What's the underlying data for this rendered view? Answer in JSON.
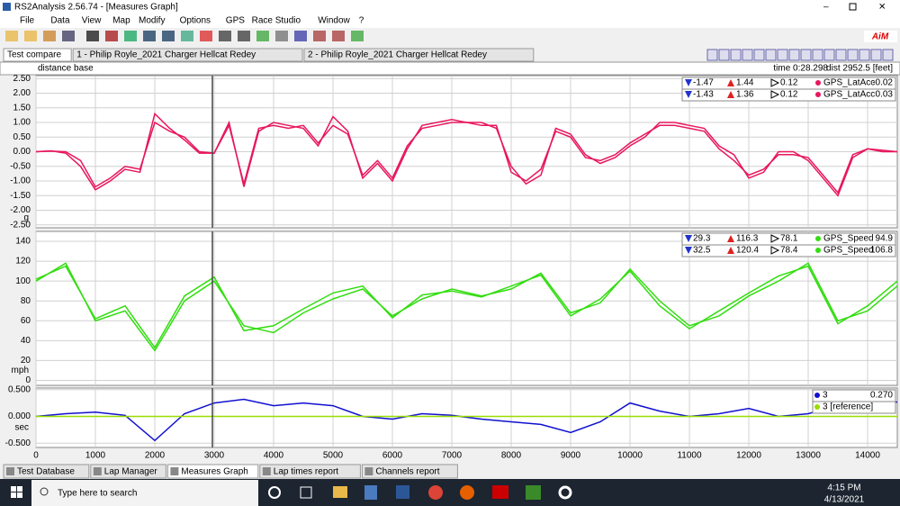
{
  "window": {
    "title": "RS2Analysis 2.56.74 - [Measures Graph]",
    "menu": [
      "File",
      "Data",
      "View",
      "Map",
      "Modify",
      "Options",
      "GPS",
      "Race Studio",
      "Window",
      "?"
    ]
  },
  "tabs": [
    "Test compare",
    "1 - Philip Royle_2021 Charger Hellcat Redey",
    "2 - Philip Royle_2021 Charger Hellcat Redey"
  ],
  "header": {
    "mode": "distance base",
    "time": "time 0:28.298",
    "dist": "dist 2952.5 [feet]"
  },
  "chart_data": [
    {
      "type": "line",
      "unit": "g",
      "ylim": [
        -2.6,
        2.6
      ],
      "yticks": [
        {
          "value": 2.5,
          "label": "2.50"
        },
        {
          "value": 2,
          "label": "2.00"
        },
        {
          "value": 1.5,
          "label": "1.50"
        },
        {
          "value": 1,
          "label": "1.00"
        },
        {
          "value": 0.5,
          "label": "0.50"
        },
        {
          "value": 0,
          "label": "0.00"
        },
        {
          "value": -0.5,
          "label": "-0.50"
        },
        {
          "value": -1,
          "label": "-1.00"
        },
        {
          "value": -1.5,
          "label": "-1.50"
        },
        {
          "value": -2,
          "label": "-2.00"
        },
        {
          "value": -2.5,
          "label": "-2.50"
        }
      ],
      "xlim": [
        0,
        14500
      ],
      "xticks": [
        0,
        1000,
        2000,
        3000,
        4000,
        5000,
        6000,
        7000,
        8000,
        9000,
        10000,
        11000,
        12000,
        13000,
        14000
      ],
      "x": [
        0,
        250,
        500,
        750,
        1000,
        1250,
        1500,
        1750,
        2000,
        2250,
        2500,
        2750,
        3000,
        3250,
        3500,
        3750,
        4000,
        4250,
        4500,
        4750,
        5000,
        5250,
        5500,
        5750,
        6000,
        6250,
        6500,
        6750,
        7000,
        7250,
        7500,
        7750,
        8000,
        8250,
        8500,
        8750,
        9000,
        9250,
        9500,
        9750,
        10000,
        10250,
        10500,
        10750,
        11000,
        11250,
        11500,
        11750,
        12000,
        12250,
        12500,
        12750,
        13000,
        13250,
        13500,
        13750,
        14000,
        14250,
        14500
      ],
      "series": [
        {
          "name": "GPS_LatAcc",
          "color": "#e8175d",
          "values": [
            0,
            0.02,
            0,
            -0.3,
            -1.2,
            -0.9,
            -0.5,
            -0.6,
            1.0,
            0.7,
            0.5,
            0,
            -0.05,
            0.9,
            -1.1,
            0.8,
            0.9,
            0.8,
            0.9,
            0.3,
            0.9,
            0.6,
            -0.8,
            -0.3,
            -0.9,
            0.2,
            0.8,
            0.9,
            1.0,
            1.0,
            0.9,
            0.9,
            -0.7,
            -1.0,
            -0.6,
            0.7,
            0.5,
            -0.2,
            -0.3,
            -0.1,
            0.3,
            0.6,
            0.9,
            0.9,
            0.8,
            0.7,
            0.1,
            -0.3,
            -0.8,
            -0.6,
            -0.1,
            -0.1,
            -0.2,
            -0.8,
            -1.4,
            -0.1,
            0.1,
            0,
            0
          ]
        },
        {
          "name": "GPS_LatAcc",
          "color": "#e8175d",
          "values": [
            0,
            0.03,
            -0.05,
            -0.5,
            -1.3,
            -1.0,
            -0.6,
            -0.7,
            1.3,
            0.8,
            0.4,
            -0.05,
            -0.05,
            1.0,
            -1.2,
            0.7,
            1.0,
            0.9,
            0.8,
            0.2,
            1.2,
            0.7,
            -0.9,
            -0.4,
            -1.0,
            0.1,
            0.9,
            1.0,
            1.1,
            1.0,
            1.0,
            0.8,
            -0.5,
            -1.1,
            -0.8,
            0.8,
            0.6,
            -0.1,
            -0.4,
            -0.2,
            0.2,
            0.5,
            1.0,
            1.0,
            0.9,
            0.8,
            0.2,
            -0.1,
            -0.9,
            -0.7,
            0.0,
            0.0,
            -0.3,
            -0.9,
            -1.5,
            -0.2,
            0.1,
            0.05,
            0.0
          ]
        }
      ],
      "readouts": [
        {
          "min": "-1.47",
          "max": "1.44",
          "delta": "0.12",
          "name": "GPS_LatAcc",
          "value": "-0.02"
        },
        {
          "min": "-1.43",
          "max": "1.36",
          "delta": "0.12",
          "name": "GPS_LatAcc",
          "value": "0.03"
        }
      ]
    },
    {
      "type": "line",
      "unit": "mph",
      "ylim": [
        -5,
        150
      ],
      "yticks": [
        0,
        20,
        40,
        60,
        80,
        100,
        120,
        140
      ],
      "xlim": [
        0,
        14500
      ],
      "xticks": [
        0,
        1000,
        2000,
        3000,
        4000,
        5000,
        6000,
        7000,
        8000,
        9000,
        10000,
        11000,
        12000,
        13000,
        14000
      ],
      "x": [
        0,
        500,
        1000,
        1500,
        2000,
        2500,
        3000,
        3500,
        4000,
        4500,
        5000,
        5500,
        6000,
        6500,
        7000,
        7500,
        8000,
        8500,
        9000,
        9500,
        10000,
        10500,
        11000,
        11500,
        12000,
        12500,
        13000,
        13500,
        14000,
        14500
      ],
      "series": [
        {
          "name": "GPS_Speed",
          "color": "#33dd11",
          "values": [
            102,
            115,
            62,
            75,
            33,
            85,
            104,
            50,
            55,
            72,
            88,
            95,
            63,
            86,
            90,
            84,
            95,
            106,
            65,
            82,
            110,
            75,
            52,
            70,
            88,
            105,
            115,
            57,
            75,
            100
          ]
        },
        {
          "name": "GPS_Speed",
          "color": "#33dd11",
          "values": [
            100,
            118,
            60,
            70,
            30,
            80,
            100,
            55,
            48,
            68,
            82,
            92,
            65,
            82,
            92,
            85,
            92,
            108,
            68,
            78,
            112,
            80,
            55,
            65,
            85,
            100,
            118,
            60,
            70,
            95
          ]
        }
      ],
      "readouts": [
        {
          "min": "29.3",
          "max": "116.3",
          "delta": "78.1",
          "name": "GPS_Speed",
          "value": "94.9"
        },
        {
          "min": "32.5",
          "max": "120.4",
          "delta": "78.4",
          "name": "GPS_Speed",
          "value": "106.8"
        }
      ]
    },
    {
      "type": "line",
      "unit": "sec",
      "ylim": [
        -0.58,
        0.53
      ],
      "yticks": [
        {
          "value": 0.5,
          "label": "0.500"
        },
        {
          "value": 0,
          "label": "0.000"
        },
        {
          "value": -0.5,
          "label": "-0.500"
        }
      ],
      "xlim": [
        0,
        14500
      ],
      "xticks": [
        0,
        1000,
        2000,
        3000,
        4000,
        5000,
        6000,
        7000,
        8000,
        9000,
        10000,
        11000,
        12000,
        13000,
        14000
      ],
      "x": [
        0,
        500,
        1000,
        1500,
        2000,
        2500,
        3000,
        3500,
        4000,
        4500,
        5000,
        5500,
        6000,
        6500,
        7000,
        7500,
        8000,
        8500,
        9000,
        9500,
        10000,
        10500,
        11000,
        11500,
        12000,
        12500,
        13000,
        13500,
        14000,
        14500
      ],
      "series": [
        {
          "name": "3",
          "color": "#1010d0",
          "values": [
            0,
            0.05,
            0.08,
            0.02,
            -0.45,
            0.05,
            0.25,
            0.32,
            0.2,
            0.25,
            0.2,
            0,
            -0.05,
            0.05,
            0.02,
            -0.05,
            -0.1,
            -0.15,
            -0.3,
            -0.1,
            0.25,
            0.1,
            0.0,
            0.05,
            0.15,
            0.0,
            0.05,
            0.2,
            0.25,
            0.27
          ]
        },
        {
          "name": "3 [reference]",
          "color": "#99dd00",
          "values": [
            0,
            0,
            0,
            0,
            0,
            0,
            0,
            0,
            0,
            0,
            0,
            0,
            0,
            0,
            0,
            0,
            0,
            0,
            0,
            0,
            0,
            0,
            0,
            0,
            0,
            0,
            0,
            0,
            0,
            0
          ]
        }
      ],
      "readouts": [
        {
          "name": "3",
          "value": "0.270"
        },
        {
          "name": "3 [reference]"
        }
      ]
    }
  ],
  "bottom_tabs": [
    "Test Database",
    "Lap Manager",
    "Measures Graph",
    "Lap times report",
    "Channels report"
  ],
  "taskbar": {
    "search": "Type here to search",
    "time": "4:15 PM",
    "date": "4/13/2021"
  }
}
